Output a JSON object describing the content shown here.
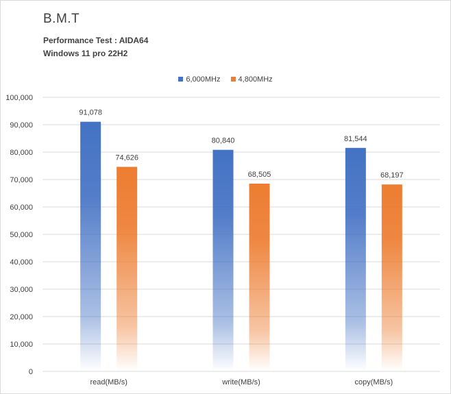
{
  "title": "B.M.T",
  "subtitle_1": "Performance Test : AIDA64",
  "subtitle_2": "Windows 11 pro 22H2",
  "colors": {
    "series_1": "#4472c4",
    "series_2": "#ed7d31",
    "grid": "#d9d9d9",
    "text": "#404040"
  },
  "chart_data": {
    "type": "bar",
    "title": "B.M.T",
    "categories": [
      "read(MB/s)",
      "write(MB/s)",
      "copy(MB/s)"
    ],
    "series": [
      {
        "name": "6,000MHz",
        "values": [
          91078,
          80840,
          81544
        ],
        "labels": [
          "91,078",
          "80,840",
          "81,544"
        ]
      },
      {
        "name": "4,800MHz",
        "values": [
          74626,
          68505,
          68197
        ],
        "labels": [
          "74,626",
          "68,505",
          "68,197"
        ]
      }
    ],
    "ylim": [
      0,
      100000
    ],
    "yticks": [
      "0",
      "10,000",
      "20,000",
      "30,000",
      "40,000",
      "50,000",
      "60,000",
      "70,000",
      "80,000",
      "90,000",
      "100,000"
    ],
    "grid": true,
    "legend_position": "top-center",
    "bar_style": "gradient fading to white toward the baseline"
  }
}
